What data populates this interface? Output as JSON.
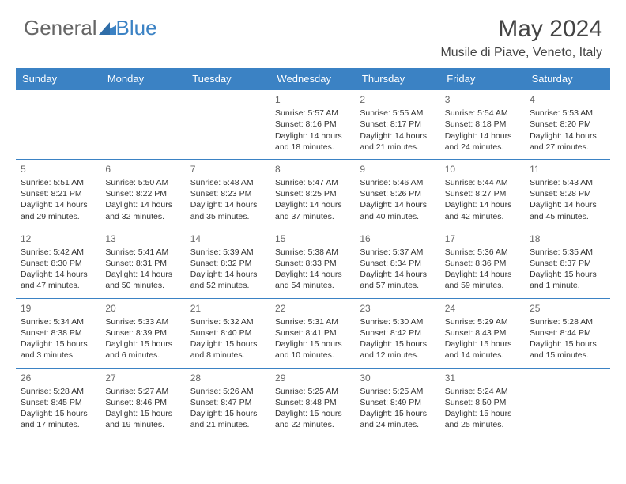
{
  "logo": {
    "part1": "General",
    "part2": "Blue"
  },
  "title": "May 2024",
  "location": "Musile di Piave, Veneto, Italy",
  "colors": {
    "accent": "#3b82c4",
    "text": "#333333",
    "header_text": "#ffffff",
    "bg": "#ffffff"
  },
  "dayHeaders": [
    "Sunday",
    "Monday",
    "Tuesday",
    "Wednesday",
    "Thursday",
    "Friday",
    "Saturday"
  ],
  "weeks": [
    [
      null,
      null,
      null,
      {
        "n": "1",
        "sr": "Sunrise: 5:57 AM",
        "ss": "Sunset: 8:16 PM",
        "dl": "Daylight: 14 hours and 18 minutes."
      },
      {
        "n": "2",
        "sr": "Sunrise: 5:55 AM",
        "ss": "Sunset: 8:17 PM",
        "dl": "Daylight: 14 hours and 21 minutes."
      },
      {
        "n": "3",
        "sr": "Sunrise: 5:54 AM",
        "ss": "Sunset: 8:18 PM",
        "dl": "Daylight: 14 hours and 24 minutes."
      },
      {
        "n": "4",
        "sr": "Sunrise: 5:53 AM",
        "ss": "Sunset: 8:20 PM",
        "dl": "Daylight: 14 hours and 27 minutes."
      }
    ],
    [
      {
        "n": "5",
        "sr": "Sunrise: 5:51 AM",
        "ss": "Sunset: 8:21 PM",
        "dl": "Daylight: 14 hours and 29 minutes."
      },
      {
        "n": "6",
        "sr": "Sunrise: 5:50 AM",
        "ss": "Sunset: 8:22 PM",
        "dl": "Daylight: 14 hours and 32 minutes."
      },
      {
        "n": "7",
        "sr": "Sunrise: 5:48 AM",
        "ss": "Sunset: 8:23 PM",
        "dl": "Daylight: 14 hours and 35 minutes."
      },
      {
        "n": "8",
        "sr": "Sunrise: 5:47 AM",
        "ss": "Sunset: 8:25 PM",
        "dl": "Daylight: 14 hours and 37 minutes."
      },
      {
        "n": "9",
        "sr": "Sunrise: 5:46 AM",
        "ss": "Sunset: 8:26 PM",
        "dl": "Daylight: 14 hours and 40 minutes."
      },
      {
        "n": "10",
        "sr": "Sunrise: 5:44 AM",
        "ss": "Sunset: 8:27 PM",
        "dl": "Daylight: 14 hours and 42 minutes."
      },
      {
        "n": "11",
        "sr": "Sunrise: 5:43 AM",
        "ss": "Sunset: 8:28 PM",
        "dl": "Daylight: 14 hours and 45 minutes."
      }
    ],
    [
      {
        "n": "12",
        "sr": "Sunrise: 5:42 AM",
        "ss": "Sunset: 8:30 PM",
        "dl": "Daylight: 14 hours and 47 minutes."
      },
      {
        "n": "13",
        "sr": "Sunrise: 5:41 AM",
        "ss": "Sunset: 8:31 PM",
        "dl": "Daylight: 14 hours and 50 minutes."
      },
      {
        "n": "14",
        "sr": "Sunrise: 5:39 AM",
        "ss": "Sunset: 8:32 PM",
        "dl": "Daylight: 14 hours and 52 minutes."
      },
      {
        "n": "15",
        "sr": "Sunrise: 5:38 AM",
        "ss": "Sunset: 8:33 PM",
        "dl": "Daylight: 14 hours and 54 minutes."
      },
      {
        "n": "16",
        "sr": "Sunrise: 5:37 AM",
        "ss": "Sunset: 8:34 PM",
        "dl": "Daylight: 14 hours and 57 minutes."
      },
      {
        "n": "17",
        "sr": "Sunrise: 5:36 AM",
        "ss": "Sunset: 8:36 PM",
        "dl": "Daylight: 14 hours and 59 minutes."
      },
      {
        "n": "18",
        "sr": "Sunrise: 5:35 AM",
        "ss": "Sunset: 8:37 PM",
        "dl": "Daylight: 15 hours and 1 minute."
      }
    ],
    [
      {
        "n": "19",
        "sr": "Sunrise: 5:34 AM",
        "ss": "Sunset: 8:38 PM",
        "dl": "Daylight: 15 hours and 3 minutes."
      },
      {
        "n": "20",
        "sr": "Sunrise: 5:33 AM",
        "ss": "Sunset: 8:39 PM",
        "dl": "Daylight: 15 hours and 6 minutes."
      },
      {
        "n": "21",
        "sr": "Sunrise: 5:32 AM",
        "ss": "Sunset: 8:40 PM",
        "dl": "Daylight: 15 hours and 8 minutes."
      },
      {
        "n": "22",
        "sr": "Sunrise: 5:31 AM",
        "ss": "Sunset: 8:41 PM",
        "dl": "Daylight: 15 hours and 10 minutes."
      },
      {
        "n": "23",
        "sr": "Sunrise: 5:30 AM",
        "ss": "Sunset: 8:42 PM",
        "dl": "Daylight: 15 hours and 12 minutes."
      },
      {
        "n": "24",
        "sr": "Sunrise: 5:29 AM",
        "ss": "Sunset: 8:43 PM",
        "dl": "Daylight: 15 hours and 14 minutes."
      },
      {
        "n": "25",
        "sr": "Sunrise: 5:28 AM",
        "ss": "Sunset: 8:44 PM",
        "dl": "Daylight: 15 hours and 15 minutes."
      }
    ],
    [
      {
        "n": "26",
        "sr": "Sunrise: 5:28 AM",
        "ss": "Sunset: 8:45 PM",
        "dl": "Daylight: 15 hours and 17 minutes."
      },
      {
        "n": "27",
        "sr": "Sunrise: 5:27 AM",
        "ss": "Sunset: 8:46 PM",
        "dl": "Daylight: 15 hours and 19 minutes."
      },
      {
        "n": "28",
        "sr": "Sunrise: 5:26 AM",
        "ss": "Sunset: 8:47 PM",
        "dl": "Daylight: 15 hours and 21 minutes."
      },
      {
        "n": "29",
        "sr": "Sunrise: 5:25 AM",
        "ss": "Sunset: 8:48 PM",
        "dl": "Daylight: 15 hours and 22 minutes."
      },
      {
        "n": "30",
        "sr": "Sunrise: 5:25 AM",
        "ss": "Sunset: 8:49 PM",
        "dl": "Daylight: 15 hours and 24 minutes."
      },
      {
        "n": "31",
        "sr": "Sunrise: 5:24 AM",
        "ss": "Sunset: 8:50 PM",
        "dl": "Daylight: 15 hours and 25 minutes."
      },
      null
    ]
  ]
}
